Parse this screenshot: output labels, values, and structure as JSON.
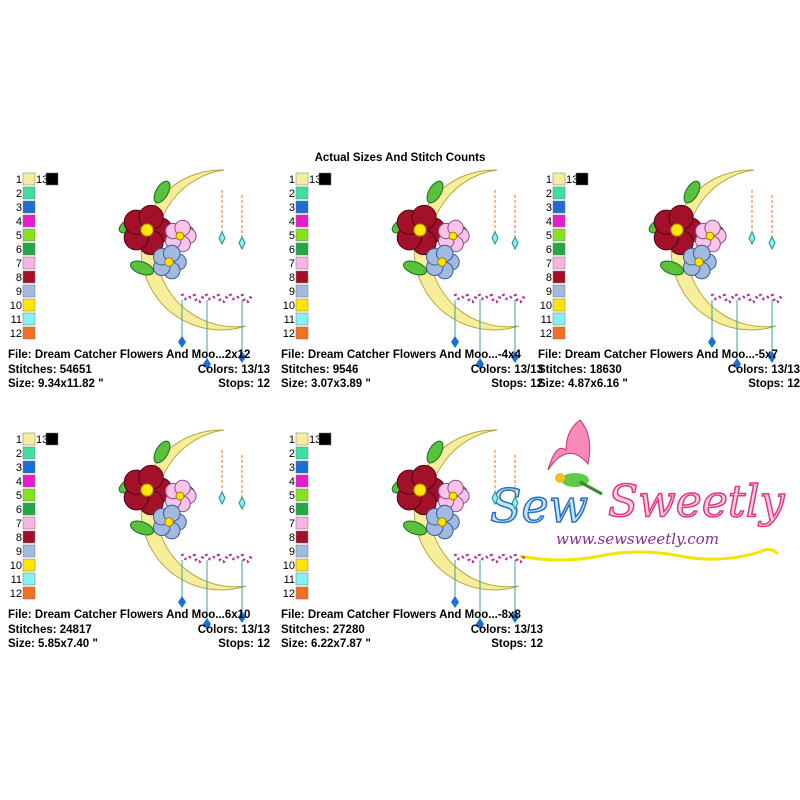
{
  "title": "Actual Sizes And Stitch Counts",
  "palette": [
    {
      "label": "1",
      "color": "#f6ee9a"
    },
    {
      "label": "2",
      "color": "#3ee0a2"
    },
    {
      "label": "3",
      "color": "#1a6fd6"
    },
    {
      "label": "4",
      "color": "#e41ec8"
    },
    {
      "label": "5",
      "color": "#86e21e"
    },
    {
      "label": "6",
      "color": "#22a844"
    },
    {
      "label": "7",
      "color": "#f8b4e2"
    },
    {
      "label": "8",
      "color": "#a3102a"
    },
    {
      "label": "9",
      "color": "#a2badf"
    },
    {
      "label": "10",
      "color": "#ffe600"
    },
    {
      "label": "11",
      "color": "#84f2f0"
    },
    {
      "label": "12",
      "color": "#f27022"
    },
    {
      "label": "13",
      "color": "#000000"
    }
  ],
  "cards": [
    {
      "file": "File: Dream Catcher Flowers And Moo...2x12",
      "stitches": "Stitches: 54651",
      "colors": "Colors: 13/13",
      "size": "Size: 9.34x11.82 \"",
      "stops": "Stops: 12"
    },
    {
      "file": "File: Dream Catcher Flowers And Moo...-4x4",
      "stitches": "Stitches: 9546",
      "colors": "Colors: 13/13",
      "size": "Size: 3.07x3.89 \"",
      "stops": "Stops: 12"
    },
    {
      "file": "File: Dream Catcher Flowers And Moo...-5x7",
      "stitches": "Stitches: 18630",
      "colors": "Colors: 13/13",
      "size": "Size: 4.87x6.16 \"",
      "stops": "Stops: 12"
    },
    {
      "file": "File: Dream Catcher Flowers And Moo...6x10",
      "stitches": "Stitches: 24817",
      "colors": "Colors: 13/13",
      "size": "Size: 5.85x7.40 \"",
      "stops": "Stops: 12"
    },
    {
      "file": "File: Dream Catcher Flowers And Moo...-8x8",
      "stitches": "Stitches: 27280",
      "colors": "Colors: 13/13",
      "size": "Size: 6.22x7.87 \"",
      "stops": "Stops: 12"
    }
  ],
  "logo": {
    "name_part1": "Sew",
    "name_part2": "Sweetly",
    "url": "www.sewsweetly.com"
  }
}
